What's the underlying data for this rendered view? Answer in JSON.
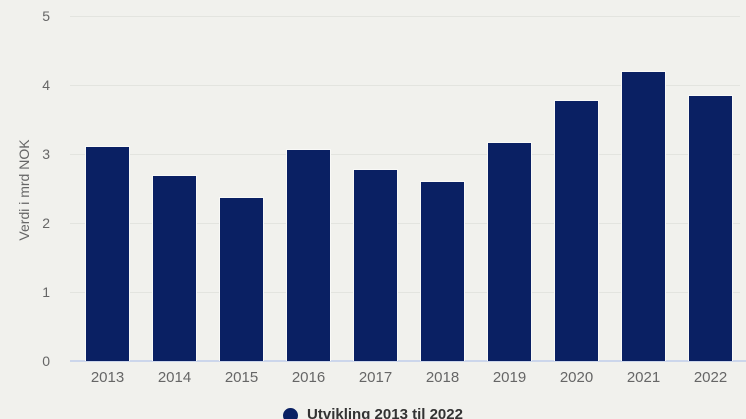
{
  "chart_data": {
    "type": "bar",
    "title": "",
    "categories": [
      "2013",
      "2014",
      "2015",
      "2016",
      "2017",
      "2018",
      "2019",
      "2020",
      "2021",
      "2022"
    ],
    "values": [
      3.12,
      2.7,
      2.37,
      3.07,
      2.78,
      2.61,
      3.17,
      3.78,
      4.2,
      3.85
    ],
    "xlabel": "",
    "ylabel": "Verdi i mrd NOK",
    "ylim": [
      0,
      5
    ],
    "yticks": [
      0,
      1,
      2,
      3,
      4,
      5
    ],
    "grid": true,
    "legend_position": "bottom-center",
    "legend": {
      "label": "Utvikling 2013 til 2022",
      "marker": "circle-icon"
    },
    "colors": {
      "bar": "#0a2063",
      "background": "#f1f1ed",
      "gridline": "#e3e4df",
      "axis_line": "#ccd6eb",
      "tick_label": "#666666",
      "axis_title": "#666666",
      "legend_text": "#333333"
    }
  }
}
